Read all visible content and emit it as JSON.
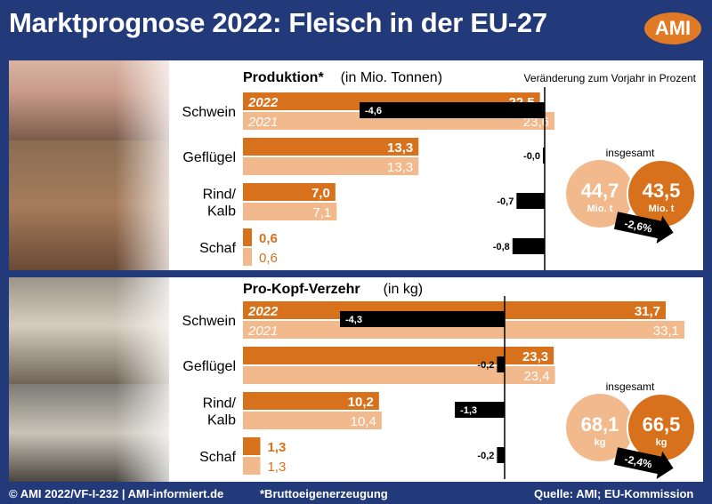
{
  "title": "Marktprognose 2022: Fleisch in der EU-27",
  "logo": "AMI",
  "year_current": "2022",
  "year_previous": "2021",
  "change_header": "Veränderung zum Vorjahr in Prozent",
  "photos": [
    "pigs-photo",
    "chickens-photo",
    "cows-photo",
    "goats-photo"
  ],
  "colors": {
    "current": "#d7711c",
    "previous": "#f2b98d",
    "change": "#000000",
    "frame": "#233a7a",
    "circle_current": "#d7711c",
    "circle_previous": "#f2b98d"
  },
  "chart_data": [
    {
      "type": "bar",
      "title": "Produktion*",
      "subtitle": "(in Mio. Tonnen)",
      "categories": [
        "Schwein",
        "Geflügel",
        "Rind/\nKalb",
        "Schaf"
      ],
      "category_labels": [
        [
          "Schwein"
        ],
        [
          "Geflügel"
        ],
        [
          "Rind/",
          "Kalb"
        ],
        [
          "Schaf"
        ]
      ],
      "series": [
        {
          "name": "2022",
          "values": [
            22.5,
            13.3,
            7.0,
            0.6
          ],
          "labels": [
            "22,5",
            "13,3",
            "7,0",
            "0,6"
          ]
        },
        {
          "name": "2021",
          "values": [
            23.6,
            13.3,
            7.1,
            0.6
          ],
          "labels": [
            "23,6",
            "13,3",
            "7,1",
            "0,6"
          ]
        }
      ],
      "change": {
        "values": [
          -4.6,
          -0.0,
          -0.7,
          -0.8
        ],
        "labels": [
          "-4,6",
          "-0,0",
          "-0,7",
          "-0,8"
        ]
      },
      "total": {
        "label": "insgesamt",
        "previous": "44,7",
        "current": "43,5",
        "unit": "Mio. t",
        "change": "-2,6%"
      }
    },
    {
      "type": "bar",
      "title": "Pro-Kopf-Verzehr",
      "subtitle": "(in kg)",
      "categories": [
        "Schwein",
        "Geflügel",
        "Rind/\nKalb",
        "Schaf"
      ],
      "category_labels": [
        [
          "Schwein"
        ],
        [
          "Geflügel"
        ],
        [
          "Rind/",
          "Kalb"
        ],
        [
          "Schaf"
        ]
      ],
      "series": [
        {
          "name": "2022",
          "values": [
            31.7,
            23.3,
            10.2,
            1.3
          ],
          "labels": [
            "31,7",
            "23,3",
            "10,2",
            "1,3"
          ]
        },
        {
          "name": "2021",
          "values": [
            33.1,
            23.4,
            10.4,
            1.3
          ],
          "labels": [
            "33,1",
            "23,4",
            "10,4",
            "1,3"
          ]
        }
      ],
      "change": {
        "values": [
          -4.3,
          -0.2,
          -1.3,
          -0.2
        ],
        "labels": [
          "-4,3",
          "-0,2",
          "-1,3",
          "-0,2"
        ]
      },
      "total": {
        "label": "insgesamt",
        "previous": "68,1",
        "current": "66,5",
        "unit": "kg",
        "change": "-2,4%"
      }
    }
  ],
  "footer": {
    "copyright": "© AMI 2022/VF-I-232 | AMI-informiert.de",
    "note": "*Bruttoeigenerzeugung",
    "source": "Quelle: AMI; EU-Kommission"
  }
}
